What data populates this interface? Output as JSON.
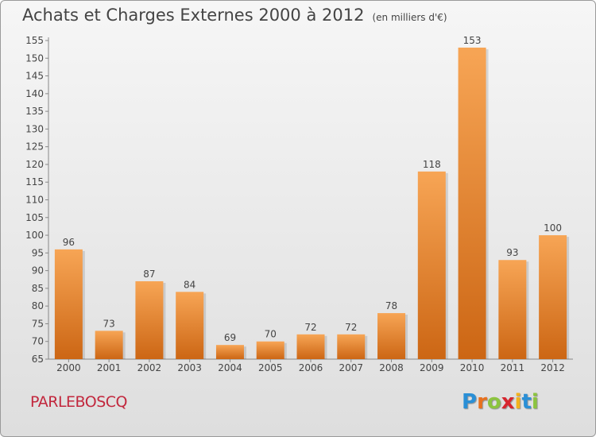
{
  "title": "Achats et Charges Externes 2000 à 2012",
  "unit_note": "(en milliers d'€)",
  "town": "PARLEBOSCQ",
  "logo": {
    "letters": [
      "P",
      "r",
      "o",
      "x",
      "i",
      "t",
      "i"
    ],
    "colors": [
      "#2a8fd6",
      "#e8711e",
      "#8cc43f",
      "#d7262f",
      "#f3b21c",
      "#2a8fd6",
      "#8cc43f"
    ]
  },
  "colors": {
    "bar_top": "#f7a555",
    "bar_bottom": "#cc6614",
    "text": "#444444",
    "town": "#c2273d"
  },
  "chart_data": {
    "type": "bar",
    "categories": [
      "2000",
      "2001",
      "2002",
      "2003",
      "2004",
      "2005",
      "2006",
      "2007",
      "2008",
      "2009",
      "2010",
      "2011",
      "2012"
    ],
    "values": [
      96,
      73,
      87,
      84,
      69,
      70,
      72,
      72,
      78,
      118,
      153,
      93,
      100
    ],
    "ylim": [
      65,
      155
    ],
    "yticks": [
      65,
      70,
      75,
      80,
      85,
      90,
      95,
      100,
      105,
      110,
      115,
      120,
      125,
      130,
      135,
      140,
      145,
      150,
      155
    ],
    "grid": false,
    "data_labels": true
  }
}
